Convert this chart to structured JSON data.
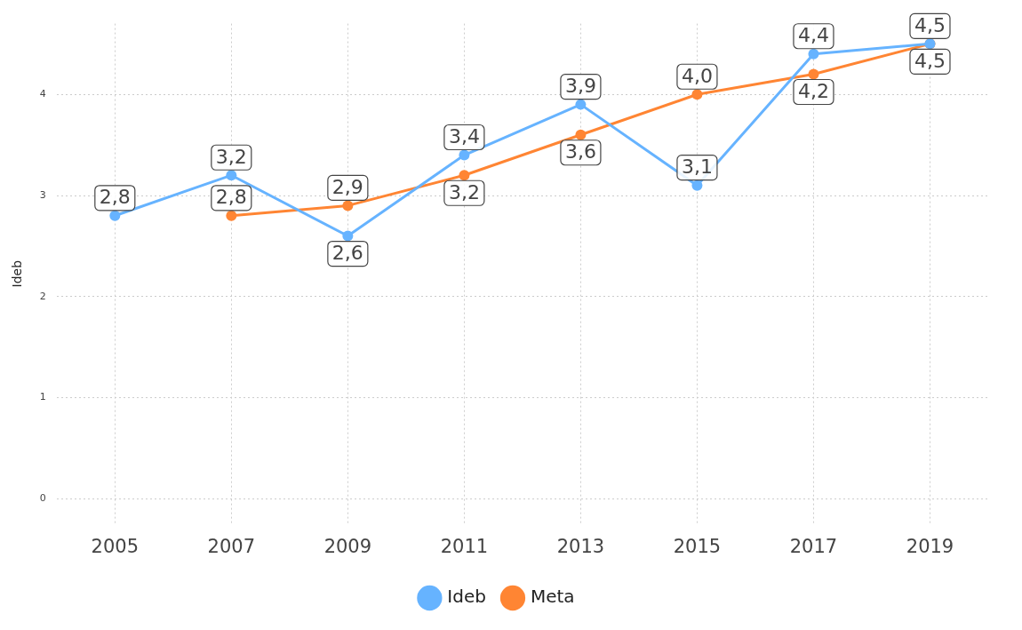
{
  "chart_data": {
    "type": "line",
    "ylabel": "Ideb",
    "categories": [
      "2005",
      "2007",
      "2009",
      "2011",
      "2013",
      "2015",
      "2017",
      "2019"
    ],
    "series": [
      {
        "name": "Ideb",
        "color": "#66b3ff",
        "values": [
          2.8,
          3.2,
          2.6,
          3.4,
          3.9,
          3.1,
          4.4,
          4.5
        ],
        "value_labels": [
          "2,8",
          "3,2",
          "2,6",
          "3,4",
          "3,9",
          "3,1",
          "4,4",
          "4,5"
        ]
      },
      {
        "name": "Meta",
        "color": "#ff8533",
        "values": [
          null,
          2.8,
          2.9,
          3.2,
          3.6,
          4.0,
          4.2,
          4.5
        ],
        "value_labels": [
          null,
          "2,8",
          "2,9",
          "3,2",
          "3,6",
          "4,0",
          "4,2",
          "4,5"
        ]
      }
    ],
    "ylim": [
      -0.25,
      4.7
    ],
    "yticks": [
      0,
      1,
      2,
      3,
      4
    ],
    "grid": true,
    "legend": "bottom",
    "marker": "circle",
    "line_style": "solid"
  }
}
